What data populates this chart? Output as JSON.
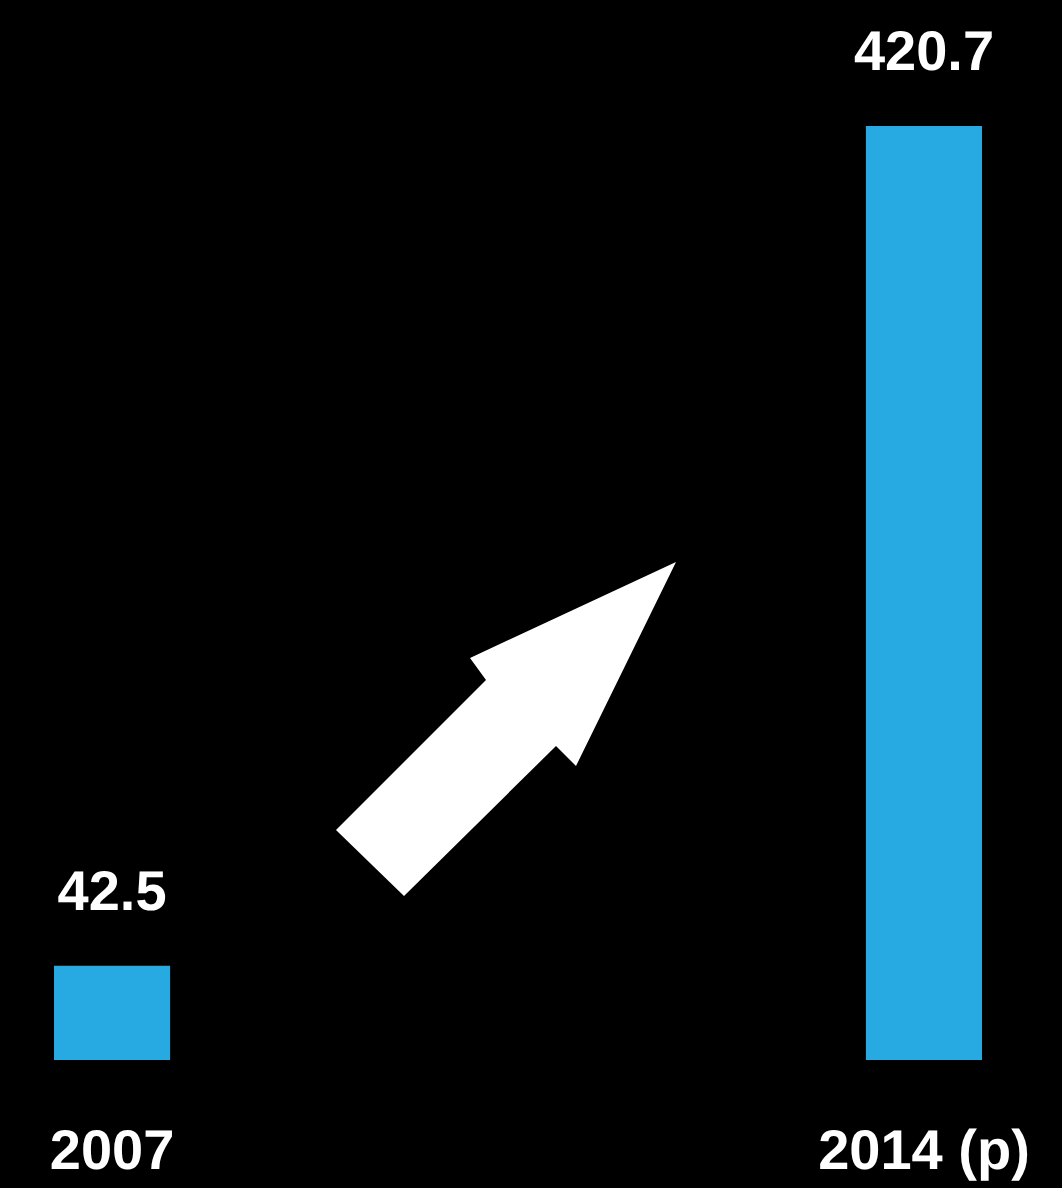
{
  "chart_data": {
    "type": "bar",
    "categories": [
      "2007",
      "2014 (p)"
    ],
    "values": [
      42.5,
      420.7
    ],
    "color": "#27aae1",
    "data_labels": true
  }
}
